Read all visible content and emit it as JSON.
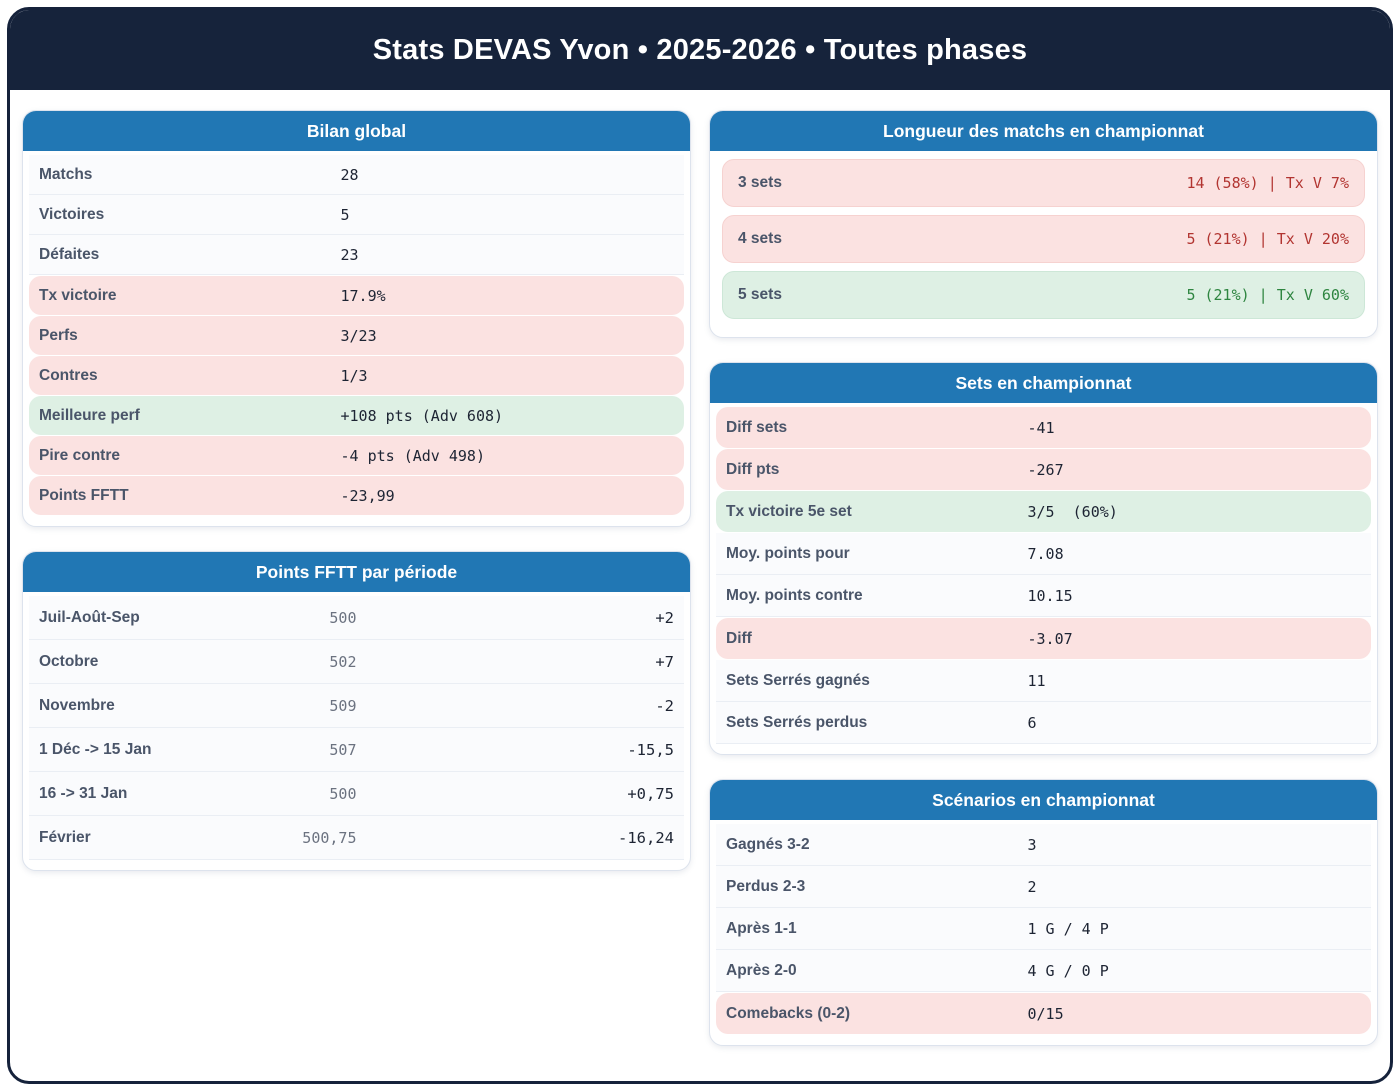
{
  "header": {
    "title": "Stats DEVAS Yvon • 2025-2026 • Toutes phases"
  },
  "colors": {
    "header_navy": "#16233b",
    "panel_header_blue": "#2177b4",
    "negative_row_bg": "#fbe2e1",
    "positive_row_bg": "#def0e4",
    "negative_text": "#b23531",
    "positive_text": "#2e8540",
    "label_text": "#4a5569",
    "value_text": "#1d2433"
  },
  "panels": {
    "bilan": {
      "title": "Bilan global",
      "rows": [
        {
          "label": "Matchs",
          "value": "28",
          "tone": "plain"
        },
        {
          "label": "Victoires",
          "value": "5",
          "tone": "plain"
        },
        {
          "label": "Défaites",
          "value": "23",
          "tone": "plain"
        },
        {
          "label": "Tx victoire",
          "value": "17.9%",
          "tone": "neg"
        },
        {
          "label": "Perfs",
          "value": "3/23",
          "tone": "neg"
        },
        {
          "label": "Contres",
          "value": "1/3",
          "tone": "neg"
        },
        {
          "label": "Meilleure perf",
          "value": "+108 pts (Adv 608)",
          "tone": "pos"
        },
        {
          "label": "Pire contre",
          "value": "-4 pts (Adv 498)",
          "tone": "neg"
        },
        {
          "label": "Points FFTT",
          "value": "-23,99",
          "tone": "neg"
        }
      ]
    },
    "points_periode": {
      "title": "Points FFTT par période",
      "rows": [
        {
          "label": "Juil-Août-Sep",
          "value": "500",
          "delta": "+2"
        },
        {
          "label": "Octobre",
          "value": "502",
          "delta": "+7"
        },
        {
          "label": "Novembre",
          "value": "509",
          "delta": "-2"
        },
        {
          "label": "1 Déc -> 15 Jan",
          "value": "507",
          "delta": "-15,5"
        },
        {
          "label": "16 -> 31 Jan",
          "value": "500",
          "delta": "+0,75"
        },
        {
          "label": "Février",
          "value": "500,75",
          "delta": "-16,24"
        }
      ]
    },
    "longueur": {
      "title": "Longueur des matchs en championnat",
      "rows": [
        {
          "label": "3 sets",
          "value": "14 (58%) | Tx V 7%",
          "tone": "neg"
        },
        {
          "label": "4 sets",
          "value": "5 (21%) | Tx V 20%",
          "tone": "neg"
        },
        {
          "label": "5 sets",
          "value": "5 (21%) | Tx V 60%",
          "tone": "pos"
        }
      ]
    },
    "sets": {
      "title": "Sets en championnat",
      "rows": [
        {
          "label": "Diff sets",
          "value": "-41",
          "tone": "neg"
        },
        {
          "label": "Diff pts",
          "value": "-267",
          "tone": "neg"
        },
        {
          "label": "Tx victoire 5e set",
          "value": "3/5  (60%)",
          "tone": "pos"
        },
        {
          "label": "Moy. points pour",
          "value": "7.08",
          "tone": "plain"
        },
        {
          "label": "Moy. points contre",
          "value": "10.15",
          "tone": "plain"
        },
        {
          "label": "Diff",
          "value": "-3.07",
          "tone": "neg"
        },
        {
          "label": "Sets Serrés gagnés",
          "value": "11",
          "tone": "plain"
        },
        {
          "label": "Sets Serrés perdus",
          "value": "6",
          "tone": "plain"
        }
      ]
    },
    "scenarios": {
      "title": "Scénarios en championnat",
      "rows": [
        {
          "label": "Gagnés 3-2",
          "value": "3",
          "tone": "plain"
        },
        {
          "label": "Perdus 2-3",
          "value": "2",
          "tone": "plain"
        },
        {
          "label": "Après 1-1",
          "value": "1 G / 4 P",
          "tone": "plain"
        },
        {
          "label": "Après 2-0",
          "value": "4 G / 0 P",
          "tone": "plain"
        },
        {
          "label": "Comebacks (0-2)",
          "value": "0/15",
          "tone": "neg"
        }
      ]
    }
  }
}
